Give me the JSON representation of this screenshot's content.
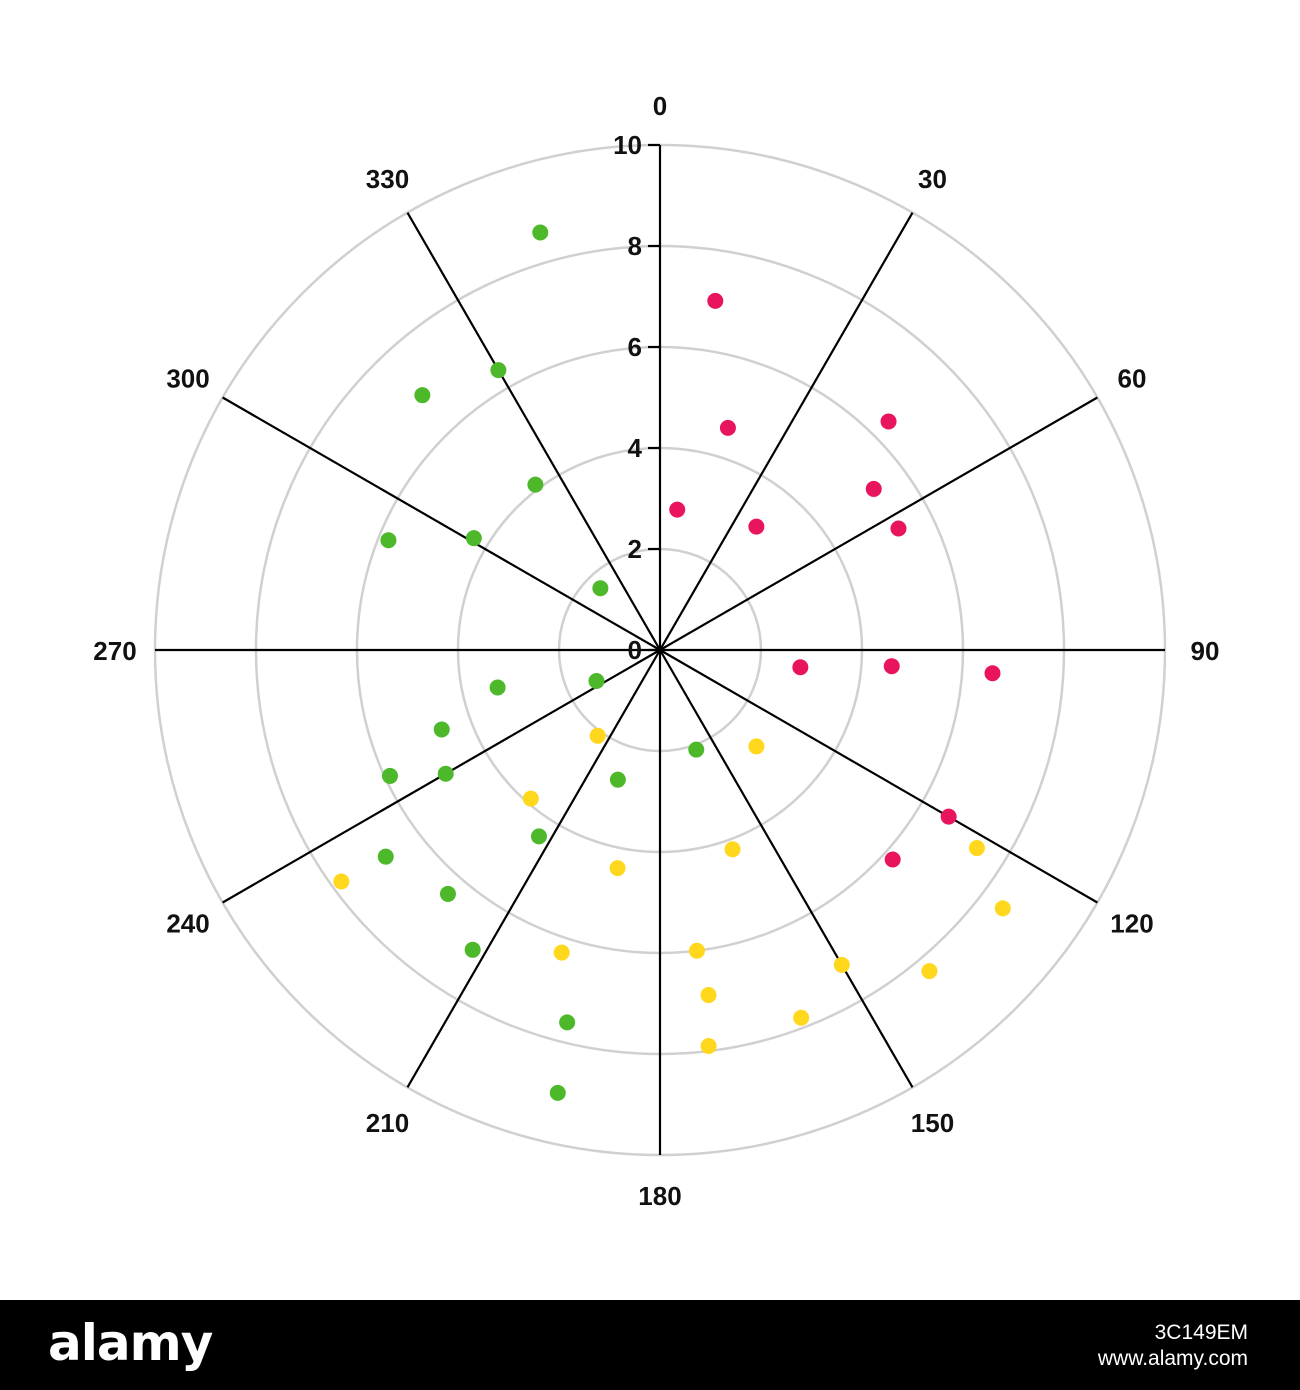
{
  "chart_data": {
    "type": "scatter",
    "projection": "polar",
    "title": "",
    "angle_unit": "degrees",
    "angle_direction": "clockwise",
    "angle_zero": "top",
    "angular_ticks": [
      0,
      30,
      60,
      90,
      120,
      150,
      180,
      210,
      240,
      270,
      300,
      330
    ],
    "angular_tick_labels": [
      "0",
      "30",
      "60",
      "90",
      "120",
      "150",
      "180",
      "210",
      "240",
      "270",
      "300",
      "330"
    ],
    "radial_range": [
      0,
      10
    ],
    "radial_ticks": [
      0,
      2,
      4,
      6,
      8,
      10
    ],
    "radial_tick_labels": [
      "0",
      "2",
      "4",
      "6",
      "8",
      "10"
    ],
    "grid": true,
    "legend": "none",
    "series": [
      {
        "color": "#e8145e",
        "points": [
          {
            "theta": 9,
            "r": 7.0
          },
          {
            "theta": 7,
            "r": 2.8
          },
          {
            "theta": 17,
            "r": 4.6
          },
          {
            "theta": 38,
            "r": 3.1
          },
          {
            "theta": 45,
            "r": 6.4
          },
          {
            "theta": 53,
            "r": 5.3
          },
          {
            "theta": 63,
            "r": 5.3
          },
          {
            "theta": 97,
            "r": 2.8
          },
          {
            "theta": 94,
            "r": 4.6
          },
          {
            "theta": 94,
            "r": 6.6
          },
          {
            "theta": 120,
            "r": 6.6
          },
          {
            "theta": 132,
            "r": 6.2
          }
        ]
      },
      {
        "color": "#4cb82a",
        "points": [
          {
            "theta": 344,
            "r": 8.6
          },
          {
            "theta": 330,
            "r": 6.4
          },
          {
            "theta": 317,
            "r": 6.9
          },
          {
            "theta": 323,
            "r": 4.1
          },
          {
            "theta": 301,
            "r": 4.3
          },
          {
            "theta": 292,
            "r": 5.8
          },
          {
            "theta": 316,
            "r": 1.7
          },
          {
            "theta": 257,
            "r": 3.3
          },
          {
            "theta": 250,
            "r": 4.6
          },
          {
            "theta": 245,
            "r": 5.9
          },
          {
            "theta": 240,
            "r": 4.9
          },
          {
            "theta": 233,
            "r": 6.8
          },
          {
            "theta": 244,
            "r": 1.4
          },
          {
            "theta": 213,
            "r": 4.4
          },
          {
            "theta": 221,
            "r": 6.4
          },
          {
            "theta": 212,
            "r": 7.0
          },
          {
            "theta": 198,
            "r": 2.7
          },
          {
            "theta": 194,
            "r": 7.6
          },
          {
            "theta": 193,
            "r": 9.0
          },
          {
            "theta": 160,
            "r": 2.1
          }
        ]
      },
      {
        "color": "#ffd81e",
        "points": [
          {
            "theta": 135,
            "r": 2.7
          },
          {
            "theta": 160,
            "r": 4.2
          },
          {
            "theta": 191,
            "r": 4.4
          },
          {
            "theta": 221,
            "r": 3.9
          },
          {
            "theta": 216,
            "r": 2.1
          },
          {
            "theta": 198,
            "r": 6.3
          },
          {
            "theta": 173,
            "r": 6.0
          },
          {
            "theta": 172,
            "r": 6.9
          },
          {
            "theta": 173,
            "r": 7.9
          },
          {
            "theta": 150,
            "r": 7.2
          },
          {
            "theta": 159,
            "r": 7.8
          },
          {
            "theta": 122,
            "r": 7.4
          },
          {
            "theta": 127,
            "r": 8.5
          },
          {
            "theta": 140,
            "r": 8.3
          },
          {
            "theta": 234,
            "r": 7.8
          }
        ]
      }
    ]
  },
  "colors": {
    "grid_circle": "#d0d0d0",
    "spoke": "#000000",
    "text": "#111111",
    "footer_background": "#000000"
  },
  "footer": {
    "logo": "alamy",
    "image_id": "3C149EM",
    "site": "www.alamy.com"
  }
}
